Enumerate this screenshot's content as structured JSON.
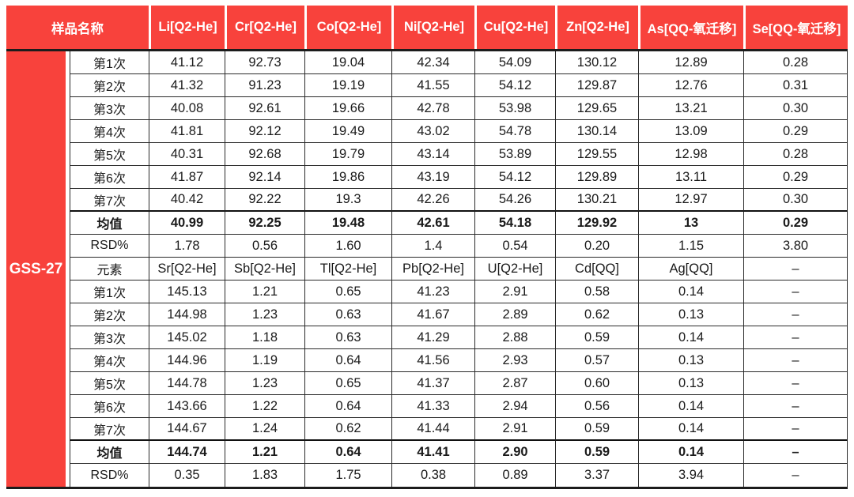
{
  "colors": {
    "header_red": "#f8423c",
    "divider_dark": "#1c1c1c",
    "cell_border": "#2a2a2a",
    "header_text": "#ffffff",
    "body_text": "#1a1a1a"
  },
  "table": {
    "sample_header": "样品名称",
    "sample_name": "GSS-27",
    "columns": [
      "Li[Q2-He]",
      "Cr[Q2-He]",
      "Co[Q2-He]",
      "Ni[Q2-He]",
      "Cu[Q2-He]",
      "Zn[Q2-He]",
      "As[QQ-氧迁移]",
      "Se[QQ-氧迁移]"
    ],
    "rows": [
      {
        "label": "第1次",
        "type": "data",
        "values": [
          "41.12",
          "92.73",
          "19.04",
          "42.34",
          "54.09",
          "130.12",
          "12.89",
          "0.28"
        ]
      },
      {
        "label": "第2次",
        "type": "data",
        "values": [
          "41.32",
          "91.23",
          "19.19",
          "41.55",
          "54.12",
          "129.87",
          "12.76",
          "0.31"
        ]
      },
      {
        "label": "第3次",
        "type": "data",
        "values": [
          "40.08",
          "92.61",
          "19.66",
          "42.78",
          "53.98",
          "129.65",
          "13.21",
          "0.30"
        ]
      },
      {
        "label": "第4次",
        "type": "data",
        "values": [
          "41.81",
          "92.12",
          "19.49",
          "43.02",
          "54.78",
          "130.14",
          "13.09",
          "0.29"
        ]
      },
      {
        "label": "第5次",
        "type": "data",
        "values": [
          "40.31",
          "92.68",
          "19.79",
          "43.14",
          "53.89",
          "129.55",
          "12.98",
          "0.28"
        ]
      },
      {
        "label": "第6次",
        "type": "data",
        "values": [
          "41.87",
          "92.14",
          "19.86",
          "43.19",
          "54.12",
          "129.89",
          "13.11",
          "0.29"
        ]
      },
      {
        "label": "第7次",
        "type": "data",
        "values": [
          "40.42",
          "92.22",
          "19.3",
          "42.26",
          "54.26",
          "130.21",
          "12.97",
          "0.30"
        ]
      },
      {
        "label": "均值",
        "type": "mean",
        "values": [
          "40.99",
          "92.25",
          "19.48",
          "42.61",
          "54.18",
          "129.92",
          "13",
          "0.29"
        ]
      },
      {
        "label": "RSD%",
        "type": "rsd",
        "values": [
          "1.78",
          "0.56",
          "1.60",
          "1.4",
          "0.54",
          "0.20",
          "1.15",
          "3.80"
        ]
      },
      {
        "label": "元素",
        "type": "element",
        "values": [
          "Sr[Q2-He]",
          "Sb[Q2-He]",
          "Tl[Q2-He]",
          "Pb[Q2-He]",
          "U[Q2-He]",
          "Cd[QQ]",
          "Ag[QQ]",
          "–"
        ]
      },
      {
        "label": "第1次",
        "type": "data",
        "values": [
          "145.13",
          "1.21",
          "0.65",
          "41.23",
          "2.91",
          "0.58",
          "0.14",
          "–"
        ]
      },
      {
        "label": "第2次",
        "type": "data",
        "values": [
          "144.98",
          "1.23",
          "0.63",
          "41.67",
          "2.89",
          "0.62",
          "0.13",
          "–"
        ]
      },
      {
        "label": "第3次",
        "type": "data",
        "values": [
          "145.02",
          "1.18",
          "0.63",
          "41.29",
          "2.88",
          "0.59",
          "0.14",
          "–"
        ]
      },
      {
        "label": "第4次",
        "type": "data",
        "values": [
          "144.96",
          "1.19",
          "0.64",
          "41.56",
          "2.93",
          "0.57",
          "0.13",
          "–"
        ]
      },
      {
        "label": "第5次",
        "type": "data",
        "values": [
          "144.78",
          "1.23",
          "0.65",
          "41.37",
          "2.87",
          "0.60",
          "0.13",
          "–"
        ]
      },
      {
        "label": "第6次",
        "type": "data",
        "values": [
          "143.66",
          "1.22",
          "0.64",
          "41.33",
          "2.94",
          "0.56",
          "0.14",
          "–"
        ]
      },
      {
        "label": "第7次",
        "type": "data",
        "values": [
          "144.67",
          "1.24",
          "0.62",
          "41.44",
          "2.91",
          "0.59",
          "0.14",
          "–"
        ]
      },
      {
        "label": "均值",
        "type": "mean",
        "values": [
          "144.74",
          "1.21",
          "0.64",
          "41.41",
          "2.90",
          "0.59",
          "0.14",
          "–"
        ]
      },
      {
        "label": "RSD%",
        "type": "rsd",
        "values": [
          "0.35",
          "1.83",
          "1.75",
          "0.38",
          "0.89",
          "3.37",
          "3.94",
          "–"
        ]
      }
    ]
  }
}
